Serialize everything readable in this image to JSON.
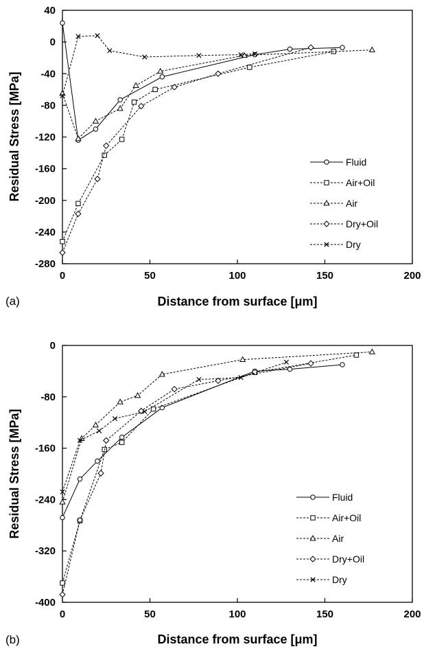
{
  "chart_data": [
    {
      "type": "line",
      "panel_label": "(a)",
      "xlabel": "Distance from surface [μm]",
      "ylabel": "Residual Stress [MPa]",
      "xlim": [
        0,
        200
      ],
      "ylim": [
        -280,
        40
      ],
      "xticks": [
        "0",
        "50",
        "100",
        "150",
        "200"
      ],
      "yticks": [
        "40",
        "0",
        "-40",
        "-80",
        "-120",
        "-160",
        "-200",
        "-240",
        "-280"
      ],
      "grid": false,
      "legend_position": "bottom-right",
      "series": [
        {
          "name": "Fluid",
          "marker": "circle",
          "dash": "solid",
          "x": [
            0,
            9,
            19,
            33,
            57,
            110,
            130,
            160
          ],
          "y": [
            24,
            -124,
            -110,
            -73,
            -44,
            -16,
            -9,
            -7
          ]
        },
        {
          "name": "Air+Oil",
          "marker": "square",
          "dash": "dashed",
          "x": [
            0,
            9,
            24,
            34,
            41,
            53,
            107,
            155
          ],
          "y": [
            -252,
            -204,
            -143,
            -123,
            -76,
            -60,
            -32,
            -12
          ]
        },
        {
          "name": "Air",
          "marker": "triangle",
          "dash": "dashed",
          "x": [
            0,
            9,
            19,
            33,
            42,
            56,
            104,
            177
          ],
          "y": [
            -65,
            -122,
            -100,
            -84,
            -55,
            -37,
            -17,
            -10
          ]
        },
        {
          "name": "Dry+Oil",
          "marker": "diamond",
          "dash": "dashed",
          "x": [
            0,
            9,
            20,
            25,
            45,
            64,
            89,
            142
          ],
          "y": [
            -266,
            -217,
            -173,
            -131,
            -81,
            -57,
            -40,
            -7
          ]
        },
        {
          "name": "Dry",
          "marker": "cross",
          "dash": "dashed",
          "x": [
            0,
            9,
            20,
            27,
            47,
            78,
            102,
            110
          ],
          "y": [
            -68,
            7,
            8,
            -11,
            -19,
            -17,
            -16,
            -15
          ]
        }
      ]
    },
    {
      "type": "line",
      "panel_label": "(b)",
      "xlabel": "Distance from surface [μm]",
      "ylabel": "Residual Stress [MPa]",
      "xlim": [
        0,
        200
      ],
      "ylim": [
        -400,
        0
      ],
      "xticks": [
        "0",
        "50",
        "100",
        "150",
        "200"
      ],
      "yticks": [
        "0",
        "-80",
        "-160",
        "-240",
        "-320",
        "-400"
      ],
      "grid": false,
      "legend_position": "bottom-right",
      "series": [
        {
          "name": "Fluid",
          "marker": "circle",
          "dash": "solid",
          "x": [
            0,
            10,
            20,
            34,
            57,
            110,
            130,
            160
          ],
          "y": [
            -268,
            -208,
            -180,
            -143,
            -97,
            -40,
            -37,
            -30
          ]
        },
        {
          "name": "Air+Oil",
          "marker": "square",
          "dash": "dashed",
          "x": [
            0,
            10,
            24,
            34,
            52,
            110,
            168
          ],
          "y": [
            -370,
            -273,
            -162,
            -151,
            -99,
            -42,
            -15
          ]
        },
        {
          "name": "Air",
          "marker": "triangle",
          "dash": "dashed",
          "x": [
            0,
            11,
            19,
            33,
            43,
            57,
            103,
            177
          ],
          "y": [
            -244,
            -145,
            -124,
            -88,
            -78,
            -45,
            -22,
            -10
          ]
        },
        {
          "name": "Dry+Oil",
          "marker": "diamond",
          "dash": "dashed",
          "x": [
            0,
            10,
            22,
            25,
            45,
            64,
            89,
            142
          ],
          "y": [
            -388,
            -272,
            -199,
            -148,
            -102,
            -68,
            -55,
            -28
          ]
        },
        {
          "name": "Dry",
          "marker": "cross",
          "dash": "dashed",
          "x": [
            0,
            10,
            21,
            30,
            47,
            78,
            102,
            128
          ],
          "y": [
            -228,
            -148,
            -133,
            -114,
            -103,
            -53,
            -50,
            -26
          ]
        }
      ]
    }
  ]
}
